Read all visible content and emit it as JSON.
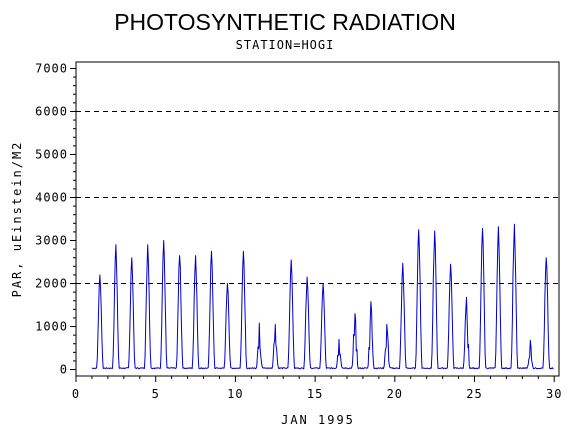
{
  "chart_data": {
    "type": "line",
    "title": "PHOTOSYNTHETIC RADIATION",
    "subtitle": "STATION=HOGI",
    "xlabel": "JAN 1995",
    "ylabel": "PAR, uEinstein/M2",
    "xlim": [
      0,
      30.3
    ],
    "ylim": [
      -150,
      7150
    ],
    "xticks": [
      0,
      5,
      10,
      15,
      20,
      25,
      30
    ],
    "yticks": [
      0,
      1000,
      2000,
      3000,
      4000,
      5000,
      6000,
      7000
    ],
    "reference_lines": [
      2000,
      4000,
      6000
    ],
    "series_color": "#0000cc",
    "daily_peaks": [
      {
        "day": 1,
        "peak": 2200
      },
      {
        "day": 2,
        "peak": 2900
      },
      {
        "day": 3,
        "peak": 2600
      },
      {
        "day": 4,
        "peak": 2900
      },
      {
        "day": 5,
        "peak": 3000
      },
      {
        "day": 6,
        "peak": 2650
      },
      {
        "day": 7,
        "peak": 2650
      },
      {
        "day": 8,
        "peak": 2750
      },
      {
        "day": 9,
        "peak": 2000
      },
      {
        "day": 10,
        "peak": 2750
      },
      {
        "day": 11,
        "peak": 1080
      },
      {
        "day": 12,
        "peak": 1050
      },
      {
        "day": 13,
        "peak": 2550
      },
      {
        "day": 14,
        "peak": 2150
      },
      {
        "day": 15,
        "peak": 2000
      },
      {
        "day": 16,
        "peak": 700
      },
      {
        "day": 17,
        "peak": 1300
      },
      {
        "day": 18,
        "peak": 1580
      },
      {
        "day": 19,
        "peak": 1050
      },
      {
        "day": 20,
        "peak": 2470
      },
      {
        "day": 21,
        "peak": 3250
      },
      {
        "day": 22,
        "peak": 3220
      },
      {
        "day": 23,
        "peak": 2450
      },
      {
        "day": 24,
        "peak": 1680
      },
      {
        "day": 25,
        "peak": 3280
      },
      {
        "day": 26,
        "peak": 3320
      },
      {
        "day": 27,
        "peak": 3380
      },
      {
        "day": 28,
        "peak": 680
      },
      {
        "day": 29,
        "peak": 2600
      }
    ]
  }
}
